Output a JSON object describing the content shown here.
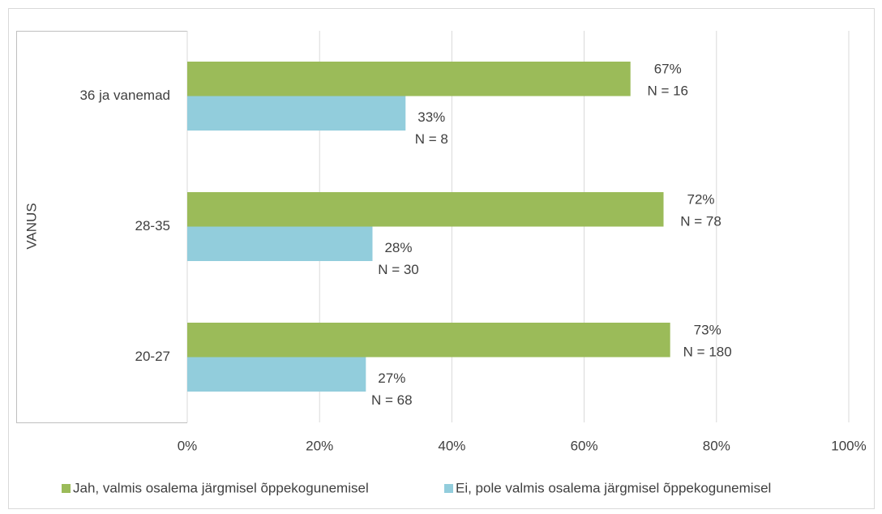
{
  "chart_data": {
    "type": "hbar",
    "y_axis_label": "VANUS",
    "categories": [
      "36 ja vanemad",
      "28-35",
      "20-27"
    ],
    "series": [
      {
        "name": "Jah, valmis osalema järgmisel õppekogunemisel",
        "color": "#9bbb59",
        "values": [
          67,
          72,
          73
        ],
        "value_labels": [
          [
            "67%",
            "N = 16"
          ],
          [
            "72%",
            "N = 78"
          ],
          [
            "73%",
            "N = 180"
          ]
        ]
      },
      {
        "name": "Ei, pole valmis osalema järgmisel õppekogunemisel",
        "color": "#92cddc",
        "values": [
          33,
          28,
          27
        ],
        "value_labels": [
          [
            "33%",
            "N = 8"
          ],
          [
            "28%",
            "N = 30"
          ],
          [
            "27%",
            "N = 68"
          ]
        ]
      }
    ],
    "xlim": [
      0,
      100
    ],
    "xticks": [
      {
        "value": 0,
        "label": "0%"
      },
      {
        "value": 20,
        "label": "20%"
      },
      {
        "value": 40,
        "label": "40%"
      },
      {
        "value": 60,
        "label": "60%"
      },
      {
        "value": 80,
        "label": "80%"
      },
      {
        "value": 100,
        "label": "100%"
      }
    ],
    "grid": true,
    "legend": "bottom"
  }
}
